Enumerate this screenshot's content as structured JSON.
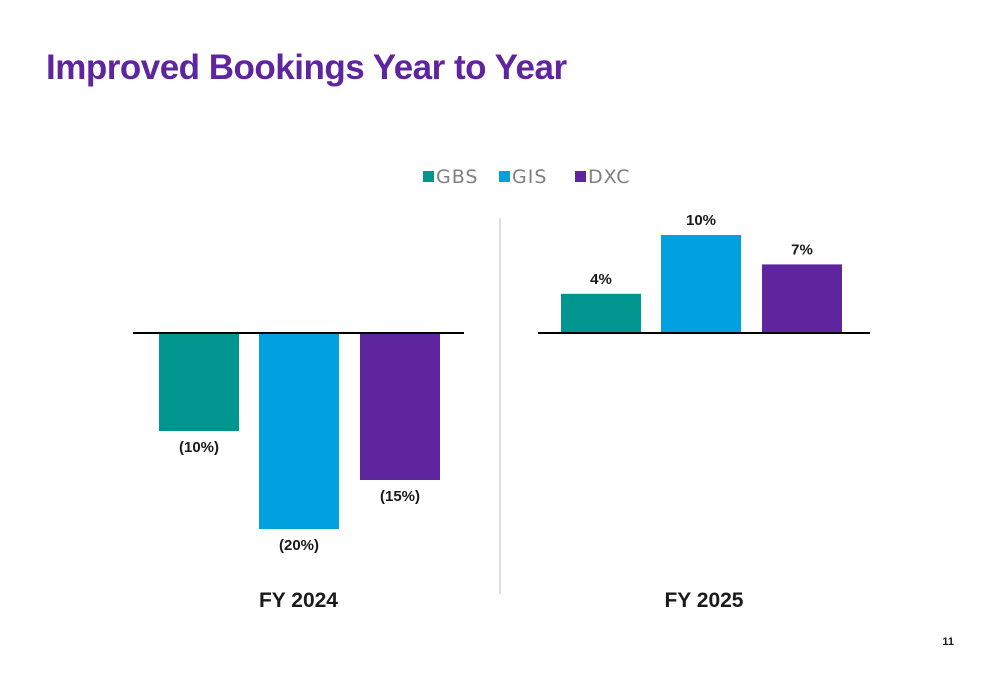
{
  "slide": {
    "title": "Improved Bookings Year to Year",
    "page_number": "11"
  },
  "colors": {
    "title": "#5f259f",
    "GBS": "#00968f",
    "GIS": "#00a1de",
    "DXC": "#5f259f"
  },
  "chart_data": [
    {
      "type": "bar",
      "group": "FY 2024",
      "series": [
        {
          "name": "GBS",
          "value": -10,
          "label": "(10%)"
        },
        {
          "name": "GIS",
          "value": -20,
          "label": "(20%)"
        },
        {
          "name": "DXC",
          "value": -15,
          "label": "(15%)"
        }
      ],
      "unit": "%"
    },
    {
      "type": "bar",
      "group": "FY 2025",
      "series": [
        {
          "name": "GBS",
          "value": 4,
          "label": "4%"
        },
        {
          "name": "GIS",
          "value": 10,
          "label": "10%"
        },
        {
          "name": "DXC",
          "value": 7,
          "label": "7%"
        }
      ],
      "unit": "%"
    }
  ],
  "legend": {
    "position": "top-center",
    "items": [
      "GBS",
      "GIS",
      "DXC"
    ]
  }
}
